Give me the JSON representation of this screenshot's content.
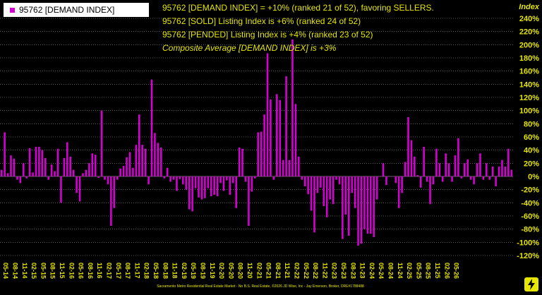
{
  "legend": {
    "label": "95762 [DEMAND INDEX]"
  },
  "annotations": [
    "95762 [DEMAND INDEX] = +10% (ranked 21 of 52), favoring SELLERS.",
    "95762 [SOLD] Listing Index is +6% (ranked 24 of 52)",
    "95762 [PENDED] Listing Index is +4% (ranked 23 of 52)",
    "Composite Average [DEMAND INDEX] is +3%"
  ],
  "footer": "Sacramento Metro Residential Real Estate Market - No B.S. Real Estate, ©2026 JD Wise, Inc - Jay Emerson, Broker, DRE#1788488",
  "colors": {
    "bar": "#d400d4",
    "text": "#e6e600",
    "grid": "#a0a0a0",
    "background": "#000000"
  },
  "logo_icon": "bolt-logo-icon",
  "chart_data": {
    "type": "bar",
    "ylabel": "Index",
    "ylim": [
      -120,
      240
    ],
    "grid": true,
    "legend_position": "top-left",
    "y_ticks": [
      "-120%",
      "-100%",
      "-80%",
      "-60%",
      "-40%",
      "-20%",
      "0%",
      "20%",
      "40%",
      "60%",
      "80%",
      "100%",
      "120%",
      "140%",
      "160%",
      "180%",
      "200%",
      "220%",
      "240%"
    ],
    "x_tick_labels": [
      "05-14",
      "08-14",
      "11-14",
      "02-15",
      "05-15",
      "08-15",
      "11-15",
      "02-16",
      "05-16",
      "08-16",
      "11-16",
      "02-17",
      "05-17",
      "08-17",
      "11-17",
      "02-18",
      "05-18",
      "08-18",
      "11-18",
      "02-19",
      "05-19",
      "08-19",
      "11-19",
      "02-20",
      "05-20",
      "08-20",
      "11-20",
      "02-21",
      "05-21",
      "08-21",
      "11-21",
      "02-22",
      "05-22",
      "08-22",
      "11-22",
      "02-23",
      "05-23",
      "08-23",
      "11-23",
      "02-24",
      "05-24",
      "08-24",
      "11-24",
      "02-25",
      "05-25",
      "08-25",
      "11-25",
      "02-26",
      "05-26"
    ],
    "series": [
      {
        "name": "95762 [DEMAND INDEX]",
        "values": [
          10,
          67,
          5,
          32,
          27,
          -5,
          -10,
          20,
          -3,
          43,
          6,
          45,
          45,
          40,
          28,
          -5,
          18,
          8,
          42,
          -40,
          28,
          52,
          30,
          10,
          -25,
          -38,
          5,
          10,
          20,
          35,
          33,
          -2,
          100,
          -5,
          -12,
          -75,
          -48,
          -5,
          12,
          16,
          29,
          37,
          13,
          48,
          94,
          48,
          42,
          -12,
          147,
          66,
          51,
          44,
          -3,
          13,
          -8,
          -5,
          -22,
          -4,
          -12,
          -20,
          -50,
          -53,
          -18,
          -32,
          -35,
          -33,
          -18,
          -30,
          -28,
          -30,
          -10,
          -22,
          -6,
          -28,
          -10,
          -48,
          44,
          42,
          -8,
          -75,
          -23,
          -3,
          67,
          68,
          94,
          187,
          117,
          -5,
          125,
          116,
          25,
          152,
          25,
          208,
          110,
          30,
          -5,
          -15,
          -27,
          -52,
          -85,
          -25,
          -17,
          -45,
          -62,
          -35,
          -42,
          -5,
          -12,
          -95,
          -58,
          -90,
          -25,
          -48,
          -105,
          -102,
          -80,
          -87,
          -87,
          -92,
          -35,
          0,
          20,
          -13,
          0,
          0,
          -10,
          -48,
          -25,
          22,
          90,
          55,
          30,
          2,
          -17,
          45,
          -8,
          -42,
          -12,
          42,
          20,
          -8,
          35,
          20,
          -8,
          32,
          58,
          -3,
          20,
          26,
          -5,
          -12,
          20,
          35,
          -5,
          20,
          -5,
          15,
          -15,
          15,
          25,
          15,
          42,
          10
        ]
      }
    ]
  }
}
